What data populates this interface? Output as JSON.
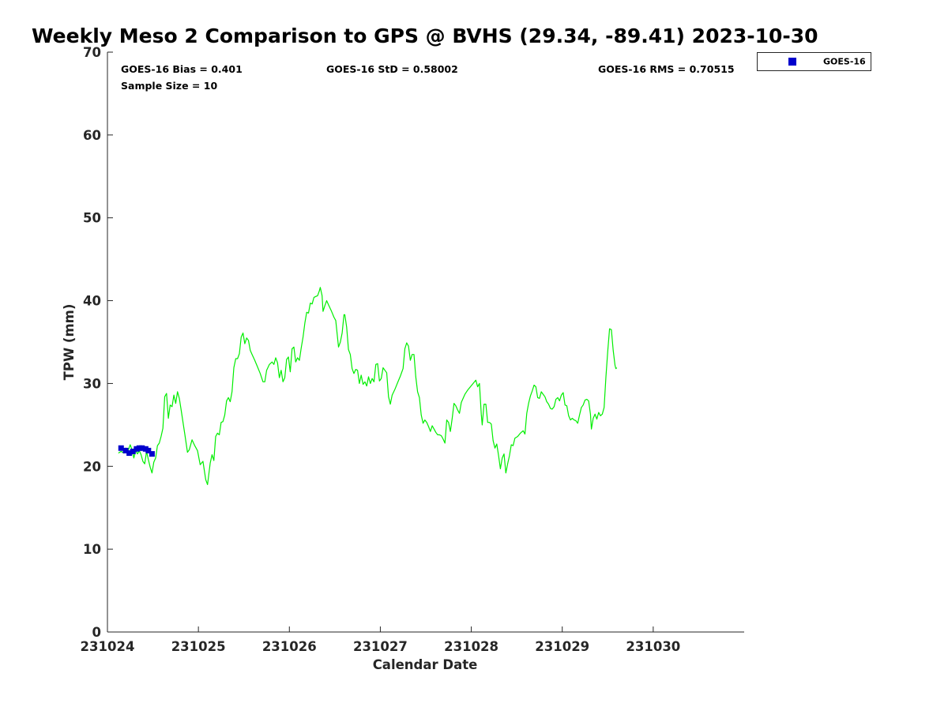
{
  "chart_data": {
    "type": "line",
    "title": "Weekly Meso 2 Comparison to GPS @ BVHS (29.34, -89.41) 2023-10-30",
    "xlabel": "Calendar Date",
    "ylabel": "TPW (mm)",
    "xlim": [
      231024,
      231031
    ],
    "ylim": [
      0,
      70
    ],
    "yticks": [
      0,
      10,
      20,
      30,
      40,
      50,
      60,
      70
    ],
    "xtick_values": [
      0,
      1,
      2,
      3,
      4,
      5,
      6
    ],
    "xtick_labels": [
      "231024",
      "231025",
      "231026",
      "231027",
      "231028",
      "231029",
      "231030"
    ],
    "stats": {
      "bias": "GOES-16 Bias = 0.401",
      "std": "GOES-16 StD = 0.58002",
      "rms": "GOES-16 RMS = 0.70515",
      "sample": "Sample Size = 10"
    },
    "legend": {
      "label": "GOES-16",
      "placement": "outside-top-right"
    },
    "series": [
      {
        "name": "GPS",
        "color": "#00ee00",
        "x_unit": "days since 231024 00Z",
        "points": [
          [
            0.12,
            21.6
          ],
          [
            0.15,
            21.8
          ],
          [
            0.18,
            21.6
          ],
          [
            0.2,
            22.2
          ],
          [
            0.23,
            22.0
          ],
          [
            0.25,
            22.6
          ],
          [
            0.27,
            22.0
          ],
          [
            0.29,
            21.0
          ],
          [
            0.31,
            21.9
          ],
          [
            0.33,
            21.5
          ],
          [
            0.35,
            21.9
          ],
          [
            0.37,
            21.4
          ],
          [
            0.39,
            20.6
          ],
          [
            0.41,
            20.3
          ],
          [
            0.43,
            21.8
          ],
          [
            0.45,
            20.8
          ],
          [
            0.47,
            19.9
          ],
          [
            0.49,
            19.2
          ],
          [
            0.51,
            20.5
          ],
          [
            0.53,
            21.0
          ],
          [
            0.55,
            22.5
          ],
          [
            0.57,
            22.8
          ],
          [
            0.59,
            23.6
          ],
          [
            0.61,
            24.6
          ],
          [
            0.63,
            28.4
          ],
          [
            0.65,
            28.8
          ],
          [
            0.67,
            25.8
          ],
          [
            0.69,
            27.4
          ],
          [
            0.71,
            27.2
          ],
          [
            0.73,
            28.6
          ],
          [
            0.75,
            27.6
          ],
          [
            0.77,
            29.0
          ],
          [
            0.79,
            28.2
          ],
          [
            0.81,
            26.8
          ],
          [
            0.85,
            23.9
          ],
          [
            0.88,
            21.7
          ],
          [
            0.9,
            22.0
          ],
          [
            0.93,
            23.2
          ],
          [
            0.96,
            22.5
          ],
          [
            0.99,
            21.9
          ],
          [
            1.02,
            20.2
          ],
          [
            1.05,
            20.6
          ],
          [
            1.08,
            18.4
          ],
          [
            1.1,
            17.8
          ],
          [
            1.13,
            20.4
          ],
          [
            1.15,
            21.4
          ],
          [
            1.17,
            20.7
          ],
          [
            1.19,
            23.6
          ],
          [
            1.21,
            24.0
          ],
          [
            1.23,
            23.8
          ],
          [
            1.25,
            25.3
          ],
          [
            1.27,
            25.4
          ],
          [
            1.29,
            26.2
          ],
          [
            1.31,
            27.9
          ],
          [
            1.33,
            28.3
          ],
          [
            1.35,
            27.8
          ],
          [
            1.37,
            29.0
          ],
          [
            1.39,
            31.9
          ],
          [
            1.41,
            33.0
          ],
          [
            1.43,
            33.0
          ],
          [
            1.45,
            33.6
          ],
          [
            1.47,
            35.6
          ],
          [
            1.49,
            36.1
          ],
          [
            1.51,
            34.8
          ],
          [
            1.53,
            35.5
          ],
          [
            1.55,
            35.2
          ],
          [
            1.57,
            34.0
          ],
          [
            1.59,
            33.5
          ],
          [
            1.62,
            32.8
          ],
          [
            1.65,
            32.0
          ],
          [
            1.68,
            31.2
          ],
          [
            1.71,
            30.2
          ],
          [
            1.73,
            30.2
          ],
          [
            1.75,
            31.6
          ],
          [
            1.78,
            32.3
          ],
          [
            1.81,
            32.6
          ],
          [
            1.83,
            32.3
          ],
          [
            1.85,
            33.1
          ],
          [
            1.87,
            32.5
          ],
          [
            1.89,
            30.7
          ],
          [
            1.91,
            31.6
          ],
          [
            1.93,
            30.2
          ],
          [
            1.95,
            30.7
          ],
          [
            1.97,
            32.9
          ],
          [
            1.99,
            33.2
          ],
          [
            2.01,
            31.4
          ],
          [
            2.03,
            34.2
          ],
          [
            2.05,
            34.4
          ],
          [
            2.07,
            32.6
          ],
          [
            2.09,
            33.1
          ],
          [
            2.11,
            32.8
          ],
          [
            2.13,
            34.3
          ],
          [
            2.15,
            35.6
          ],
          [
            2.17,
            37.3
          ],
          [
            2.19,
            38.6
          ],
          [
            2.21,
            38.5
          ],
          [
            2.23,
            39.7
          ],
          [
            2.25,
            39.6
          ],
          [
            2.27,
            40.4
          ],
          [
            2.29,
            40.5
          ],
          [
            2.31,
            40.6
          ],
          [
            2.33,
            41.2
          ],
          [
            2.34,
            41.6
          ],
          [
            2.36,
            40.6
          ],
          [
            2.37,
            38.7
          ],
          [
            2.39,
            39.4
          ],
          [
            2.41,
            40.0
          ],
          [
            2.43,
            39.5
          ],
          [
            2.46,
            38.8
          ],
          [
            2.49,
            38.0
          ],
          [
            2.51,
            37.6
          ],
          [
            2.54,
            34.4
          ],
          [
            2.56,
            35.0
          ],
          [
            2.58,
            36.1
          ],
          [
            2.6,
            38.3
          ],
          [
            2.61,
            38.3
          ],
          [
            2.63,
            36.8
          ],
          [
            2.65,
            34.1
          ],
          [
            2.67,
            33.5
          ],
          [
            2.69,
            31.8
          ],
          [
            2.71,
            31.2
          ],
          [
            2.73,
            31.7
          ],
          [
            2.75,
            31.6
          ],
          [
            2.77,
            30.0
          ],
          [
            2.79,
            31.0
          ],
          [
            2.81,
            29.9
          ],
          [
            2.83,
            30.2
          ],
          [
            2.85,
            29.7
          ],
          [
            2.87,
            30.8
          ],
          [
            2.89,
            30.0
          ],
          [
            2.91,
            30.6
          ],
          [
            2.93,
            30.2
          ],
          [
            2.95,
            32.3
          ],
          [
            2.97,
            32.4
          ],
          [
            2.99,
            30.3
          ],
          [
            3.01,
            30.6
          ],
          [
            3.03,
            31.9
          ],
          [
            3.05,
            31.6
          ],
          [
            3.07,
            31.3
          ],
          [
            3.09,
            28.4
          ],
          [
            3.11,
            27.5
          ],
          [
            3.13,
            28.6
          ],
          [
            3.16,
            29.3
          ],
          [
            3.19,
            30.1
          ],
          [
            3.22,
            30.9
          ],
          [
            3.25,
            31.8
          ],
          [
            3.27,
            34.2
          ],
          [
            3.29,
            34.9
          ],
          [
            3.31,
            34.5
          ],
          [
            3.33,
            32.8
          ],
          [
            3.35,
            33.5
          ],
          [
            3.37,
            33.5
          ],
          [
            3.39,
            30.8
          ],
          [
            3.41,
            29.0
          ],
          [
            3.43,
            28.3
          ],
          [
            3.45,
            26.2
          ],
          [
            3.47,
            25.2
          ],
          [
            3.49,
            25.6
          ],
          [
            3.51,
            25.3
          ],
          [
            3.53,
            24.8
          ],
          [
            3.55,
            24.2
          ],
          [
            3.57,
            24.9
          ],
          [
            3.59,
            24.5
          ],
          [
            3.61,
            24.1
          ],
          [
            3.63,
            23.8
          ],
          [
            3.65,
            23.8
          ],
          [
            3.67,
            23.7
          ],
          [
            3.69,
            23.3
          ],
          [
            3.71,
            22.8
          ],
          [
            3.73,
            25.6
          ],
          [
            3.75,
            25.3
          ],
          [
            3.77,
            24.2
          ],
          [
            3.79,
            25.8
          ],
          [
            3.81,
            27.6
          ],
          [
            3.83,
            27.3
          ],
          [
            3.85,
            26.8
          ],
          [
            3.87,
            26.4
          ],
          [
            3.89,
            27.7
          ],
          [
            3.91,
            28.2
          ],
          [
            3.93,
            28.7
          ],
          [
            3.96,
            29.2
          ],
          [
            3.99,
            29.6
          ],
          [
            4.02,
            30.0
          ],
          [
            4.05,
            30.4
          ],
          [
            4.07,
            29.6
          ],
          [
            4.09,
            30.0
          ],
          [
            4.11,
            26.3
          ],
          [
            4.12,
            25.0
          ],
          [
            4.14,
            27.5
          ],
          [
            4.16,
            27.5
          ],
          [
            4.18,
            25.3
          ],
          [
            4.2,
            25.3
          ],
          [
            4.22,
            25.1
          ],
          [
            4.24,
            23.1
          ],
          [
            4.26,
            22.2
          ],
          [
            4.28,
            22.7
          ],
          [
            4.3,
            21.3
          ],
          [
            4.32,
            19.7
          ],
          [
            4.34,
            21.0
          ],
          [
            4.36,
            21.5
          ],
          [
            4.38,
            19.2
          ],
          [
            4.4,
            20.3
          ],
          [
            4.42,
            21.3
          ],
          [
            4.44,
            22.6
          ],
          [
            4.46,
            22.5
          ],
          [
            4.48,
            23.4
          ],
          [
            4.51,
            23.6
          ],
          [
            4.54,
            24.0
          ],
          [
            4.57,
            24.3
          ],
          [
            4.59,
            23.9
          ],
          [
            4.61,
            26.4
          ],
          [
            4.63,
            27.6
          ],
          [
            4.65,
            28.5
          ],
          [
            4.67,
            29.1
          ],
          [
            4.69,
            29.8
          ],
          [
            4.71,
            29.6
          ],
          [
            4.73,
            28.3
          ],
          [
            4.75,
            28.2
          ],
          [
            4.77,
            29.0
          ],
          [
            4.79,
            28.7
          ],
          [
            4.81,
            28.4
          ],
          [
            4.83,
            27.8
          ],
          [
            4.85,
            27.5
          ],
          [
            4.87,
            27.0
          ],
          [
            4.89,
            26.9
          ],
          [
            4.91,
            27.2
          ],
          [
            4.93,
            28.1
          ],
          [
            4.95,
            28.3
          ],
          [
            4.97,
            27.9
          ],
          [
            4.99,
            28.6
          ],
          [
            5.01,
            28.9
          ],
          [
            5.03,
            27.4
          ],
          [
            5.05,
            27.3
          ],
          [
            5.07,
            26.1
          ],
          [
            5.09,
            25.6
          ],
          [
            5.11,
            25.8
          ],
          [
            5.13,
            25.6
          ],
          [
            5.15,
            25.5
          ],
          [
            5.17,
            25.2
          ],
          [
            5.19,
            26.2
          ],
          [
            5.21,
            27.1
          ],
          [
            5.23,
            27.4
          ],
          [
            5.25,
            28.0
          ],
          [
            5.27,
            28.1
          ],
          [
            5.29,
            27.9
          ],
          [
            5.31,
            26.3
          ],
          [
            5.32,
            24.5
          ],
          [
            5.34,
            25.8
          ],
          [
            5.36,
            26.3
          ],
          [
            5.38,
            25.7
          ],
          [
            5.4,
            26.5
          ],
          [
            5.42,
            26.1
          ],
          [
            5.44,
            26.3
          ],
          [
            5.46,
            27.1
          ],
          [
            5.48,
            30.8
          ],
          [
            5.5,
            33.9
          ],
          [
            5.52,
            36.6
          ],
          [
            5.54,
            36.5
          ],
          [
            5.56,
            34.0
          ],
          [
            5.58,
            32.2
          ],
          [
            5.59,
            31.8
          ],
          [
            5.6,
            31.9
          ]
        ]
      },
      {
        "name": "GOES-16",
        "color": "#0000cd",
        "x_unit": "days since 231024 00Z",
        "points": [
          [
            0.15,
            22.2
          ],
          [
            0.2,
            21.9
          ],
          [
            0.24,
            21.6
          ],
          [
            0.28,
            21.8
          ],
          [
            0.32,
            22.1
          ],
          [
            0.35,
            22.2
          ],
          [
            0.38,
            22.2
          ],
          [
            0.42,
            22.1
          ],
          [
            0.45,
            21.9
          ],
          [
            0.49,
            21.5
          ]
        ]
      }
    ]
  }
}
